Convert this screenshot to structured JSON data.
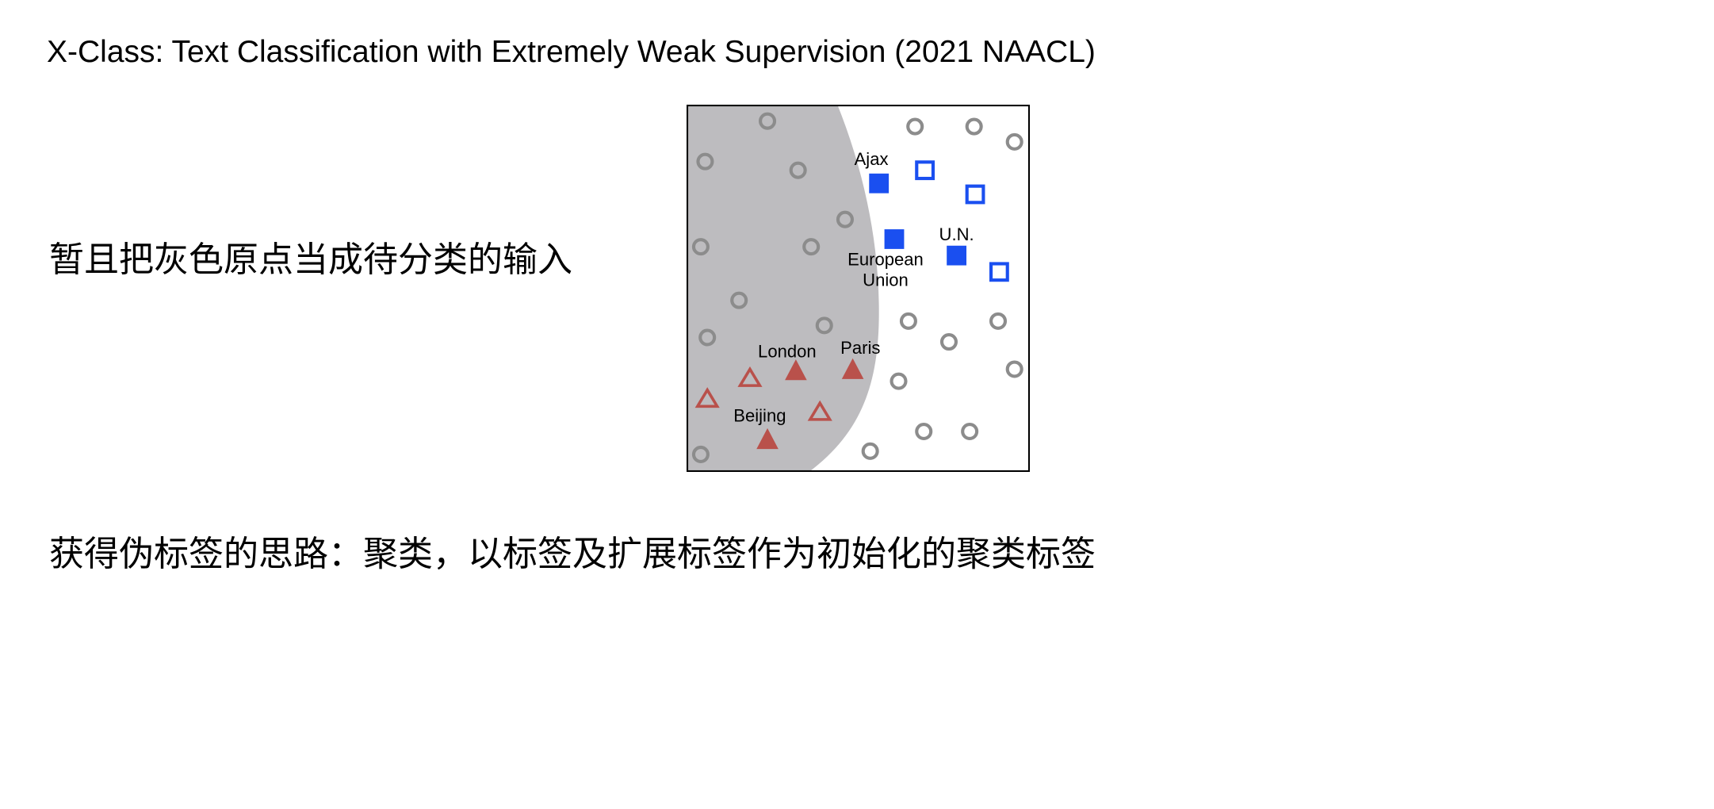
{
  "slide": {
    "title": "X-Class: Text Classification with Extremely Weak Supervision (2021 NAACL)",
    "line1": "暂且把灰色原点当成待分类的输入",
    "line2": "获得伪标签的思路：聚类，以标签及扩展标签作为初始化的聚类标签"
  },
  "figure": {
    "labels": {
      "ajax": "Ajax",
      "un": "U.N.",
      "european": "European",
      "union": "Union",
      "london": "London",
      "paris": "Paris",
      "beijing": "Beijing"
    },
    "colors": {
      "region": "#bdbcbf",
      "circle": "#8c8c8c",
      "blue": "#1a4ff0",
      "red": "#b9514b"
    }
  }
}
